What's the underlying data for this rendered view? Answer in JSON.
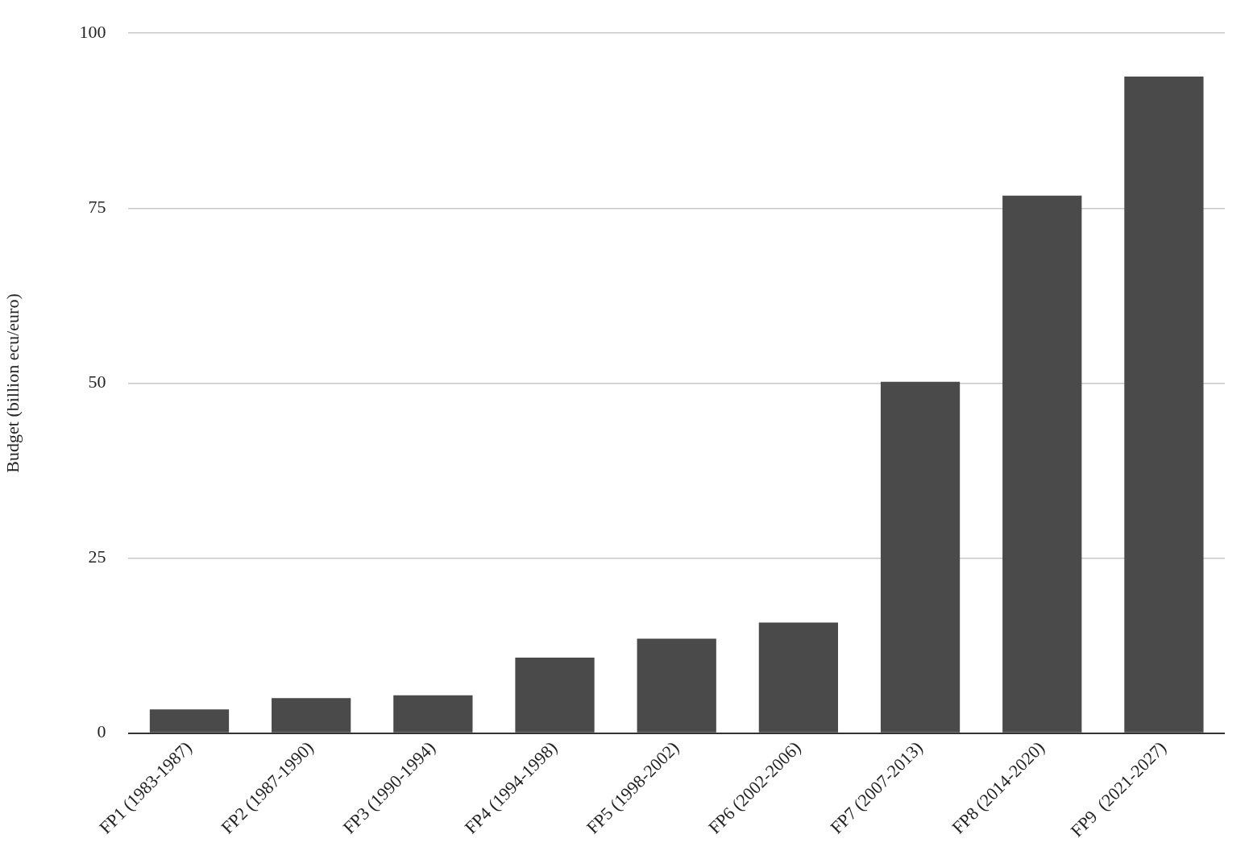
{
  "chart_data": {
    "type": "bar",
    "ylabel": "Budget (billion ecu/euro)",
    "categories": [
      "FP1 (1983-1987)",
      "FP2 (1987-1990)",
      "FP3 (1990-1994)",
      "FP4 (1994-1998)",
      "FP5 (1998-2002)",
      "FP6 (2002-2006)",
      "FP7 (2007-2013)",
      "FP8 (2014-2020)",
      "FP9  (2021-2027)"
    ],
    "values": [
      3.4,
      5.0,
      5.4,
      10.8,
      13.5,
      15.8,
      50.2,
      76.8,
      93.8
    ],
    "color": "#4a4a4a",
    "ylim": [
      0,
      100
    ],
    "yticks": [
      0,
      25,
      50,
      75,
      100
    ],
    "grid": "y",
    "legend": false
  }
}
